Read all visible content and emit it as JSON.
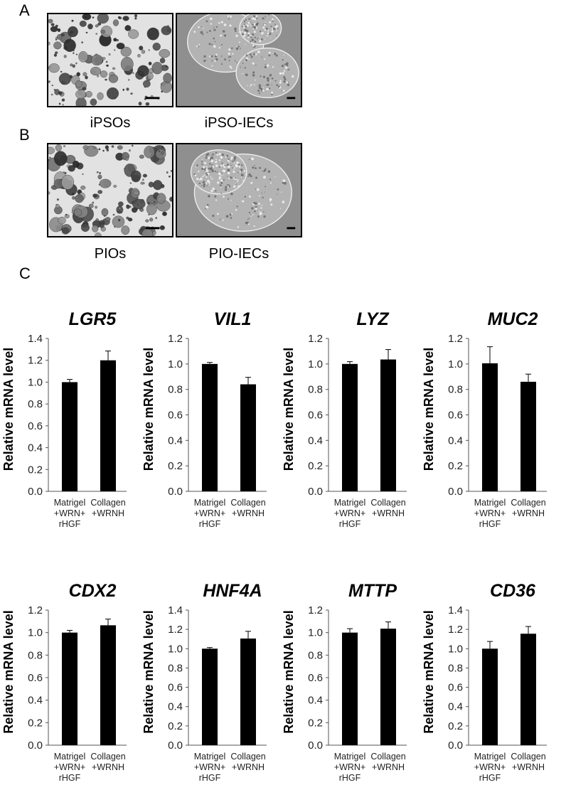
{
  "panels": {
    "A": {
      "letter": "A",
      "images": [
        {
          "label": "iPSOs",
          "kind": "organoid-field"
        },
        {
          "label": "iPSO-IECs",
          "kind": "monolayer"
        }
      ]
    },
    "B": {
      "letter": "B",
      "images": [
        {
          "label": "PIOs",
          "kind": "organoid-field"
        },
        {
          "label": "PIO-IECs",
          "kind": "monolayer"
        }
      ]
    },
    "C": {
      "letter": "C"
    }
  },
  "chart_data": [
    {
      "type": "bar",
      "title": "LGR5",
      "ylabel": "Relative mRNA level",
      "categories": [
        [
          "Matrigel",
          "+WRN+",
          "rHGF"
        ],
        [
          "Collagen",
          "+WRNH"
        ]
      ],
      "values": [
        1.0,
        1.2
      ],
      "errors": [
        0.025,
        0.085
      ],
      "ylim": [
        0,
        1.4
      ],
      "ytick_labels": [
        "0.0",
        "0.2",
        "0.4",
        "0.6",
        "0.8",
        "1.0",
        "1.2",
        "1.4"
      ]
    },
    {
      "type": "bar",
      "title": "VIL1",
      "ylabel": "Relative mRNA level",
      "categories": [
        [
          "Matrigel",
          "+WRN+",
          "rHGF"
        ],
        [
          "Collagen",
          "+WRNH"
        ]
      ],
      "values": [
        1.0,
        0.84
      ],
      "errors": [
        0.012,
        0.055
      ],
      "ylim": [
        0,
        1.2
      ],
      "ytick_labels": [
        "0.0",
        "0.2",
        "0.4",
        "0.6",
        "0.8",
        "1.0",
        "1.2"
      ]
    },
    {
      "type": "bar",
      "title": "LYZ",
      "ylabel": "Relative mRNA level",
      "categories": [
        [
          "Matrigel",
          "+WRN+",
          "rHGF"
        ],
        [
          "Collagen",
          "+WRNH"
        ]
      ],
      "values": [
        1.0,
        1.035
      ],
      "errors": [
        0.018,
        0.078
      ],
      "ylim": [
        0,
        1.2
      ],
      "ytick_labels": [
        "0.0",
        "0.2",
        "0.4",
        "0.6",
        "0.8",
        "1.0",
        "1.2"
      ]
    },
    {
      "type": "bar",
      "title": "MUC2",
      "ylabel": "Relative mRNA level",
      "categories": [
        [
          "Matrigel",
          "+WRN+",
          "rHGF"
        ],
        [
          "Collagen",
          "+WRNH"
        ]
      ],
      "values": [
        1.005,
        0.86
      ],
      "errors": [
        0.13,
        0.06
      ],
      "ylim": [
        0,
        1.2
      ],
      "ytick_labels": [
        "0.0",
        "0.2",
        "0.4",
        "0.6",
        "0.8",
        "1.0",
        "1.2"
      ]
    },
    {
      "type": "bar",
      "title": "CDX2",
      "ylabel": "Relative mRNA level",
      "categories": [
        [
          "Matrigel",
          "+WRN+",
          "rHGF"
        ],
        [
          "Collagen",
          "+WRNH"
        ]
      ],
      "values": [
        1.0,
        1.065
      ],
      "errors": [
        0.02,
        0.055
      ],
      "ylim": [
        0,
        1.2
      ],
      "ytick_labels": [
        "0.0",
        "0.2",
        "0.4",
        "0.6",
        "0.8",
        "1.0",
        "1.2"
      ]
    },
    {
      "type": "bar",
      "title": "HNF4A",
      "ylabel": "Relative mRNA level",
      "categories": [
        [
          "Matrigel",
          "+WRN+",
          "rHGF"
        ],
        [
          "Collagen",
          "+WRNH"
        ]
      ],
      "values": [
        1.0,
        1.105
      ],
      "errors": [
        0.012,
        0.075
      ],
      "ylim": [
        0,
        1.4
      ],
      "ytick_labels": [
        "0.0",
        "0.2",
        "0.4",
        "0.6",
        "0.8",
        "1.0",
        "1.2",
        "1.4"
      ]
    },
    {
      "type": "bar",
      "title": "MTTP",
      "ylabel": "Relative mRNA level",
      "categories": [
        [
          "Matrigel",
          "+WRN+",
          "rHGF"
        ],
        [
          "Collagen",
          "+WRNH"
        ]
      ],
      "values": [
        1.0,
        1.035
      ],
      "errors": [
        0.035,
        0.06
      ],
      "ylim": [
        0,
        1.2
      ],
      "ytick_labels": [
        "0.0",
        "0.2",
        "0.4",
        "0.6",
        "0.8",
        "1.0",
        "1.2"
      ]
    },
    {
      "type": "bar",
      "title": "CD36",
      "ylabel": "Relative mRNA level",
      "categories": [
        [
          "Matrigel",
          "+WRN+",
          "rHGF"
        ],
        [
          "Collagen",
          "+WRNH"
        ]
      ],
      "values": [
        1.0,
        1.155
      ],
      "errors": [
        0.075,
        0.075
      ],
      "ylim": [
        0,
        1.4
      ],
      "ytick_labels": [
        "0.0",
        "0.2",
        "0.4",
        "0.6",
        "0.8",
        "1.0",
        "1.2",
        "1.4"
      ]
    }
  ]
}
